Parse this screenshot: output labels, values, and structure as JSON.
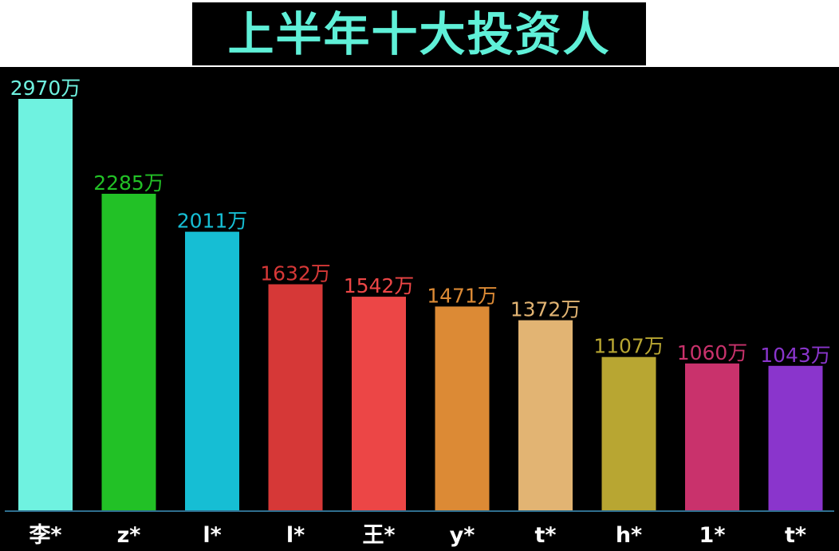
{
  "title": "上半年十大投资人",
  "colors": {
    "background": "#000000",
    "title": "#5ff0d8",
    "axis": "#2f6f8f",
    "category_label": "#ffffff"
  },
  "chart_data": {
    "type": "bar",
    "title": "上半年十大投资人",
    "xlabel": "",
    "ylabel": "",
    "unit": "万",
    "grid": false,
    "ylim": [
      0,
      2970
    ],
    "categories": [
      "李*",
      "z*",
      "l*",
      "l*",
      "王*",
      "y*",
      "t*",
      "h*",
      "1*",
      "t*"
    ],
    "values": [
      2970,
      2285,
      2011,
      1632,
      1542,
      1471,
      1372,
      1107,
      1060,
      1043
    ],
    "value_labels": [
      "2970万",
      "2285万",
      "2011万",
      "1632万",
      "1542万",
      "1471万",
      "1372万",
      "1107万",
      "1060万",
      "1043万"
    ],
    "bar_colors": [
      "#6ff2e0",
      "#22c126",
      "#16bed4",
      "#d63837",
      "#ec4646",
      "#dc8a35",
      "#e2b473",
      "#b8a632",
      "#c9326c",
      "#8a35cc"
    ]
  }
}
